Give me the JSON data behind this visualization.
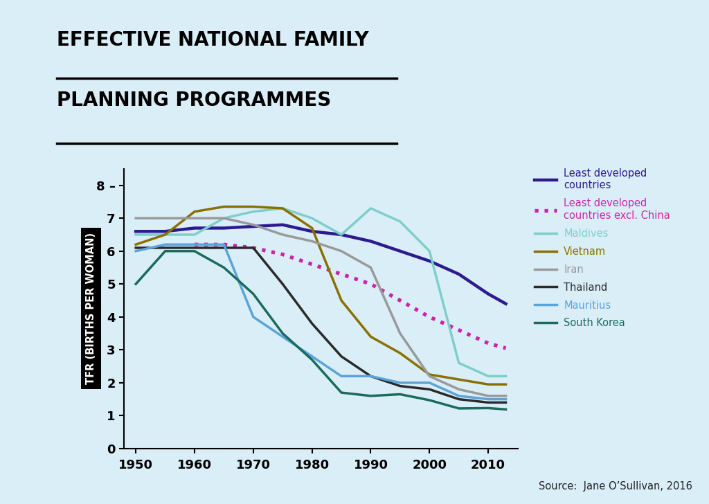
{
  "title_line1": "EFFECTIVE NATIONAL FAMILY",
  "title_line2": "PLANNING PROGRAMMES",
  "ylabel": "TFR (BIRTHS PER WOMAN)",
  "source": "Source:  Jane O’Sullivan, 2016",
  "background_color": "#daeef8",
  "ylim": [
    0,
    8.5
  ],
  "xlim": [
    1948,
    2015
  ],
  "yticks": [
    0,
    1,
    2,
    3,
    4,
    5,
    6,
    7,
    8
  ],
  "xticks": [
    1950,
    1960,
    1970,
    1980,
    1990,
    2000,
    2010
  ],
  "series": {
    "Least developed countries": {
      "color": "#2d1a8e",
      "linestyle": "solid",
      "linewidth": 3.2,
      "x": [
        1950,
        1955,
        1960,
        1965,
        1970,
        1975,
        1980,
        1985,
        1990,
        1995,
        2000,
        2005,
        2010,
        2013
      ],
      "y": [
        6.6,
        6.6,
        6.7,
        6.7,
        6.75,
        6.8,
        6.6,
        6.5,
        6.3,
        6.0,
        5.7,
        5.3,
        4.7,
        4.4
      ]
    },
    "Least developed countries excl. China": {
      "color": "#cc22aa",
      "linestyle": "dotted",
      "linewidth": 3.8,
      "x": [
        1960,
        1965,
        1970,
        1975,
        1980,
        1985,
        1990,
        1995,
        2000,
        2005,
        2010,
        2013
      ],
      "y": [
        6.2,
        6.2,
        6.1,
        5.9,
        5.6,
        5.3,
        5.0,
        4.5,
        4.0,
        3.6,
        3.2,
        3.05
      ]
    },
    "Maldives": {
      "color": "#7ececa",
      "linestyle": "solid",
      "linewidth": 2.5,
      "x": [
        1950,
        1955,
        1960,
        1965,
        1970,
        1975,
        1980,
        1985,
        1990,
        1995,
        2000,
        2005,
        2010,
        2013
      ],
      "y": [
        6.5,
        6.5,
        6.5,
        7.0,
        7.2,
        7.3,
        7.0,
        6.5,
        7.3,
        6.9,
        6.0,
        2.6,
        2.2,
        2.2
      ]
    },
    "Vietnam": {
      "color": "#8B7000",
      "linestyle": "solid",
      "linewidth": 2.5,
      "x": [
        1950,
        1955,
        1960,
        1965,
        1970,
        1975,
        1980,
        1985,
        1990,
        1995,
        2000,
        2005,
        2010,
        2013
      ],
      "y": [
        6.2,
        6.5,
        7.2,
        7.35,
        7.35,
        7.3,
        6.7,
        4.5,
        3.4,
        2.9,
        2.25,
        2.1,
        1.95,
        1.95
      ]
    },
    "Iran": {
      "color": "#999999",
      "linestyle": "solid",
      "linewidth": 2.5,
      "x": [
        1950,
        1955,
        1960,
        1965,
        1970,
        1975,
        1980,
        1985,
        1990,
        1995,
        2000,
        2005,
        2010,
        2013
      ],
      "y": [
        7.0,
        7.0,
        7.0,
        7.0,
        6.8,
        6.5,
        6.3,
        6.0,
        5.5,
        3.5,
        2.2,
        1.8,
        1.6,
        1.6
      ]
    },
    "Thailand": {
      "color": "#2a2a2a",
      "linestyle": "solid",
      "linewidth": 2.5,
      "x": [
        1950,
        1955,
        1960,
        1965,
        1970,
        1975,
        1980,
        1985,
        1990,
        1995,
        2000,
        2005,
        2010,
        2013
      ],
      "y": [
        6.1,
        6.1,
        6.1,
        6.1,
        6.1,
        5.0,
        3.8,
        2.8,
        2.2,
        1.9,
        1.8,
        1.5,
        1.4,
        1.4
      ]
    },
    "Mauritius": {
      "color": "#5ba3d9",
      "linestyle": "solid",
      "linewidth": 2.5,
      "x": [
        1950,
        1955,
        1960,
        1965,
        1970,
        1975,
        1980,
        1985,
        1990,
        1995,
        2000,
        2005,
        2010,
        2013
      ],
      "y": [
        6.0,
        6.2,
        6.2,
        6.2,
        4.0,
        3.4,
        2.8,
        2.2,
        2.2,
        2.0,
        2.0,
        1.6,
        1.5,
        1.5
      ]
    },
    "South Korea": {
      "color": "#1a6b5a",
      "linestyle": "solid",
      "linewidth": 2.5,
      "x": [
        1950,
        1955,
        1960,
        1965,
        1970,
        1975,
        1980,
        1985,
        1990,
        1995,
        2000,
        2005,
        2010,
        2013
      ],
      "y": [
        5.0,
        6.0,
        6.0,
        5.5,
        4.7,
        3.5,
        2.7,
        1.7,
        1.6,
        1.65,
        1.47,
        1.22,
        1.23,
        1.19
      ]
    }
  },
  "legend_items": [
    {
      "label": "Least developed\ncountries",
      "key": "Least developed countries",
      "color": "#2d1a8e",
      "linestyle": "solid"
    },
    {
      "label": "Least developed\ncountries excl. China",
      "key": "Least developed countries excl. China",
      "color": "#cc22aa",
      "linestyle": "dotted"
    },
    {
      "label": "Maldives",
      "key": "Maldives",
      "color": "#7ececa",
      "linestyle": "solid"
    },
    {
      "label": "Vietnam",
      "key": "Vietnam",
      "color": "#8B7000",
      "linestyle": "solid"
    },
    {
      "label": "Iran",
      "key": "Iran",
      "color": "#999999",
      "linestyle": "solid"
    },
    {
      "label": "Thailand",
      "key": "Thailand",
      "color": "#2a2a2a",
      "linestyle": "solid"
    },
    {
      "label": "Mauritius",
      "key": "Mauritius",
      "color": "#5ba3d9",
      "linestyle": "solid"
    },
    {
      "label": "South Korea",
      "key": "South Korea",
      "color": "#1a6b5a",
      "linestyle": "solid"
    }
  ]
}
